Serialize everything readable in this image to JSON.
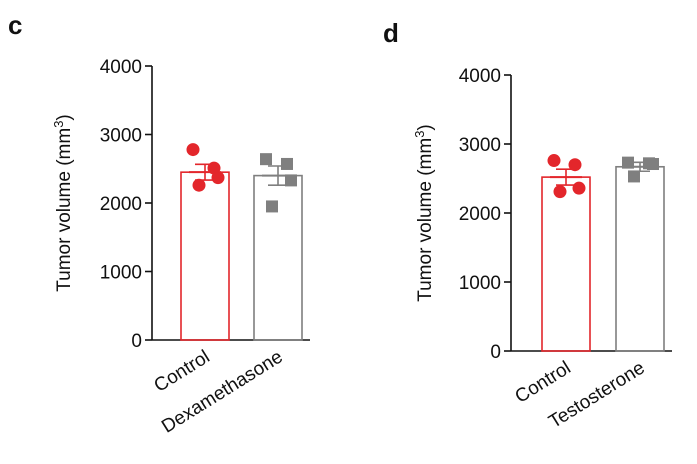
{
  "chart_data": [
    {
      "panel_label": "c",
      "type": "bar",
      "ylabel": "Tumor volume (mm",
      "ylabel_sup": "3",
      "ylabel_close": ")",
      "ylim": [
        0,
        4000
      ],
      "yticks": [
        0,
        1000,
        2000,
        3000,
        4000
      ],
      "ytick_labels": [
        "0",
        "1000",
        "2000",
        "3000",
        "4000"
      ],
      "categories": [
        "Control",
        "Dexamethasone"
      ],
      "series": [
        {
          "name": "Control",
          "mean": 2450,
          "sem": 115,
          "points": [
            2780,
            2510,
            2370,
            2260
          ],
          "color": "#e3262b",
          "marker": "circle"
        },
        {
          "name": "Dexamethasone",
          "mean": 2400,
          "sem": 140,
          "points": [
            2640,
            2570,
            2330,
            1950
          ],
          "color": "#7f7f7f",
          "marker": "square"
        }
      ]
    },
    {
      "panel_label": "d",
      "type": "bar",
      "ylabel": "Tumor volume (mm",
      "ylabel_sup": "3",
      "ylabel_close": ")",
      "ylim": [
        0,
        4000
      ],
      "yticks": [
        0,
        1000,
        2000,
        3000,
        4000
      ],
      "ytick_labels": [
        "0",
        "1000",
        "2000",
        "3000",
        "4000"
      ],
      "categories": [
        "Control",
        "Testosterone"
      ],
      "series": [
        {
          "name": "Control",
          "mean": 2520,
          "sem": 115,
          "points": [
            2760,
            2700,
            2360,
            2310
          ],
          "color": "#e3262b",
          "marker": "circle"
        },
        {
          "name": "Testosterone",
          "mean": 2670,
          "sem": 65,
          "points": [
            2730,
            2720,
            2710,
            2530
          ],
          "color": "#7f7f7f",
          "marker": "square"
        }
      ]
    }
  ],
  "colors": {
    "control": "#e3262b",
    "treatment": "#7f7f7f",
    "axis": "#111111"
  }
}
